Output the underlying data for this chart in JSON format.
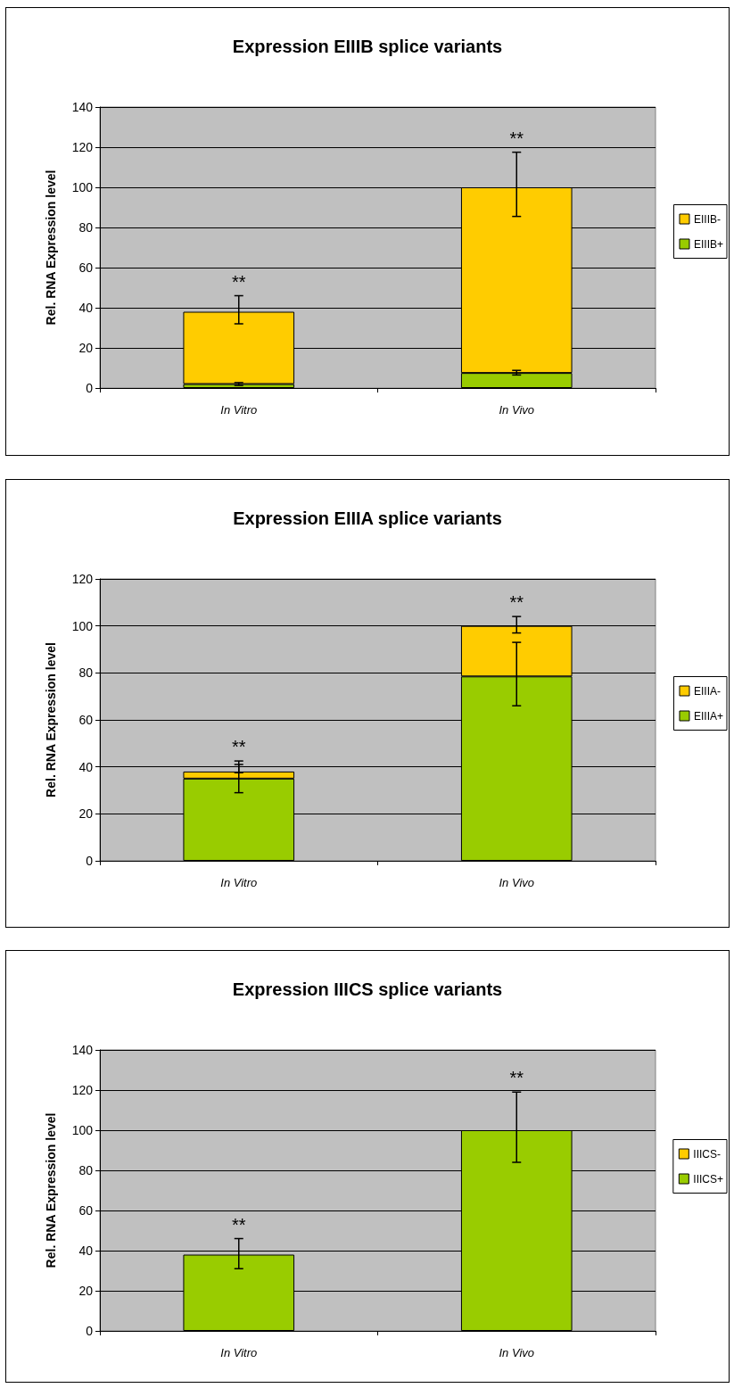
{
  "chart_data": [
    {
      "type": "bar",
      "title": "Expression EIIIB splice variants",
      "ylabel": "Rel. RNA Expression level",
      "categories": [
        "In Vitro",
        "In Vivo"
      ],
      "stacked": true,
      "ylim": [
        0,
        140
      ],
      "yticks": [
        0,
        20,
        40,
        60,
        80,
        100,
        120,
        140
      ],
      "grid": "y",
      "legend": "right",
      "series": [
        {
          "name": "EIIIB+",
          "color": "#99cc00",
          "values": [
            2,
            7.5
          ],
          "errors": [
            [
              1.3,
              2.7
            ],
            [
              6.5,
              8.8
            ]
          ]
        },
        {
          "name": "EIIIB-",
          "color": "#ffcc00",
          "values": [
            36,
            92.5
          ],
          "errors": [
            [
              32,
              46
            ],
            [
              85.5,
              117.5
            ]
          ]
        }
      ],
      "annotations": [
        "**",
        "**"
      ]
    },
    {
      "type": "bar",
      "title": "Expression EIIIA splice variants",
      "ylabel": "Rel. RNA Expression level",
      "categories": [
        "In Vitro",
        "In Vivo"
      ],
      "stacked": true,
      "ylim": [
        0,
        120
      ],
      "yticks": [
        0,
        20,
        40,
        60,
        80,
        100,
        120
      ],
      "grid": "y",
      "legend": "right",
      "series": [
        {
          "name": "EIIIA+",
          "color": "#99cc00",
          "values": [
            35,
            78.5
          ],
          "errors": [
            [
              29,
              41
            ],
            [
              66,
              93
            ]
          ]
        },
        {
          "name": "EIIIA-",
          "color": "#ffcc00",
          "values": [
            3,
            21.5
          ],
          "errors": [
            [
              37.5,
              42.5
            ],
            [
              97,
              104
            ]
          ]
        }
      ],
      "annotations": [
        "**",
        "**"
      ]
    },
    {
      "type": "bar",
      "title": "Expression IIICS splice variants",
      "ylabel": "Rel. RNA Expression level",
      "categories": [
        "In Vitro",
        "In Vivo"
      ],
      "stacked": true,
      "ylim": [
        0,
        140
      ],
      "yticks": [
        0,
        20,
        40,
        60,
        80,
        100,
        120,
        140
      ],
      "grid": "y",
      "legend": "right",
      "series": [
        {
          "name": "IIICS+",
          "color": "#99cc00",
          "values": [
            38,
            100
          ],
          "errors": [
            [
              31,
              46
            ],
            [
              84,
              119
            ]
          ]
        },
        {
          "name": "IIICS-",
          "color": "#ffcc00",
          "values": [
            0,
            0
          ]
        }
      ],
      "annotations": [
        "**",
        "**"
      ]
    }
  ]
}
